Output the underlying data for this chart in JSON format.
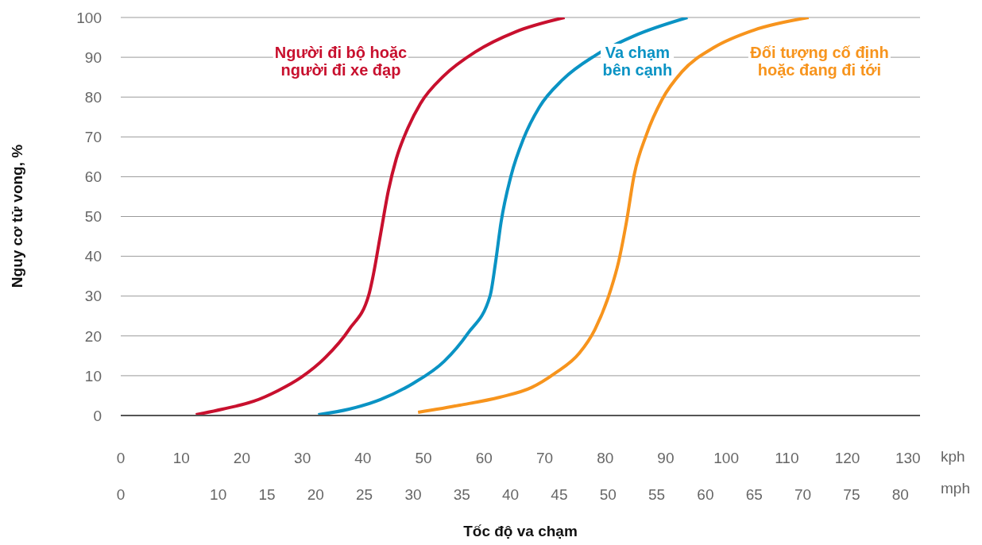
{
  "chart_data": {
    "type": "line",
    "xlabel": "Tốc độ va chạm",
    "ylabel": "Nguy cơ tử vong, %",
    "xlim": [
      0,
      132
    ],
    "xticks": [
      0,
      10,
      20,
      30,
      40,
      50,
      60,
      70,
      80,
      90,
      100,
      110,
      120,
      130
    ],
    "x2lim": [
      0,
      82.02
    ],
    "x2ticks": [
      0,
      10,
      15,
      20,
      25,
      30,
      35,
      40,
      45,
      50,
      55,
      60,
      65,
      70,
      75,
      80
    ],
    "ylim": [
      0,
      100
    ],
    "yticks": [
      0,
      10,
      20,
      30,
      40,
      50,
      60,
      70,
      80,
      90,
      100
    ],
    "grid": "y",
    "marker": "none",
    "line_style": "solid",
    "annotations": [
      "kph",
      "mph"
    ],
    "series": [
      {
        "name": "Người đi bộ hoặc\nngười đi xe đạp",
        "color": "#c8102e",
        "x": [
          12.4,
          16.8,
          22,
          25.9,
          29.8,
          33.8,
          37.7,
          41,
          41.6,
          42.9,
          44.2,
          45.5,
          47.5,
          49.5,
          53.4,
          58.6,
          65.2,
          73.3
        ],
        "values": [
          0.2,
          1.6,
          3.6,
          6.2,
          9.6,
          14.6,
          21.6,
          30.5,
          34.5,
          45.5,
          56.5,
          64.5,
          72.5,
          78.4,
          85.4,
          91.4,
          96.4,
          100
        ]
      },
      {
        "name": "Va chạm\nbên cạnh",
        "color": "#0a93c4",
        "x": [
          32.6,
          37.7,
          42.9,
          48.2,
          53.4,
          57.3,
          61,
          61.9,
          62.8,
          64.5,
          66.5,
          69.1,
          73,
          78.3,
          84.8,
          93.6
        ],
        "values": [
          0.2,
          1.6,
          4,
          8,
          13.6,
          20.6,
          30.1,
          38.5,
          48.5,
          60.5,
          69.5,
          77.4,
          84.4,
          90.4,
          95.4,
          100
        ]
      },
      {
        "name": "Đối tượng cố định\nhoặc đang đi tới",
        "color": "#f7941d",
        "x": [
          49.1,
          56,
          62.6,
          67.8,
          71.7,
          75.7,
          78.3,
          80.9,
          82.2,
          83.5,
          84.8,
          86.8,
          89.4,
          92.7,
          97.9,
          104.5,
          113.6
        ],
        "values": [
          0.8,
          2.6,
          4.6,
          7,
          10.6,
          15.6,
          21.6,
          31.5,
          38.5,
          48.5,
          60.5,
          70.5,
          79.4,
          86.4,
          92.4,
          96.8,
          100
        ]
      }
    ]
  }
}
